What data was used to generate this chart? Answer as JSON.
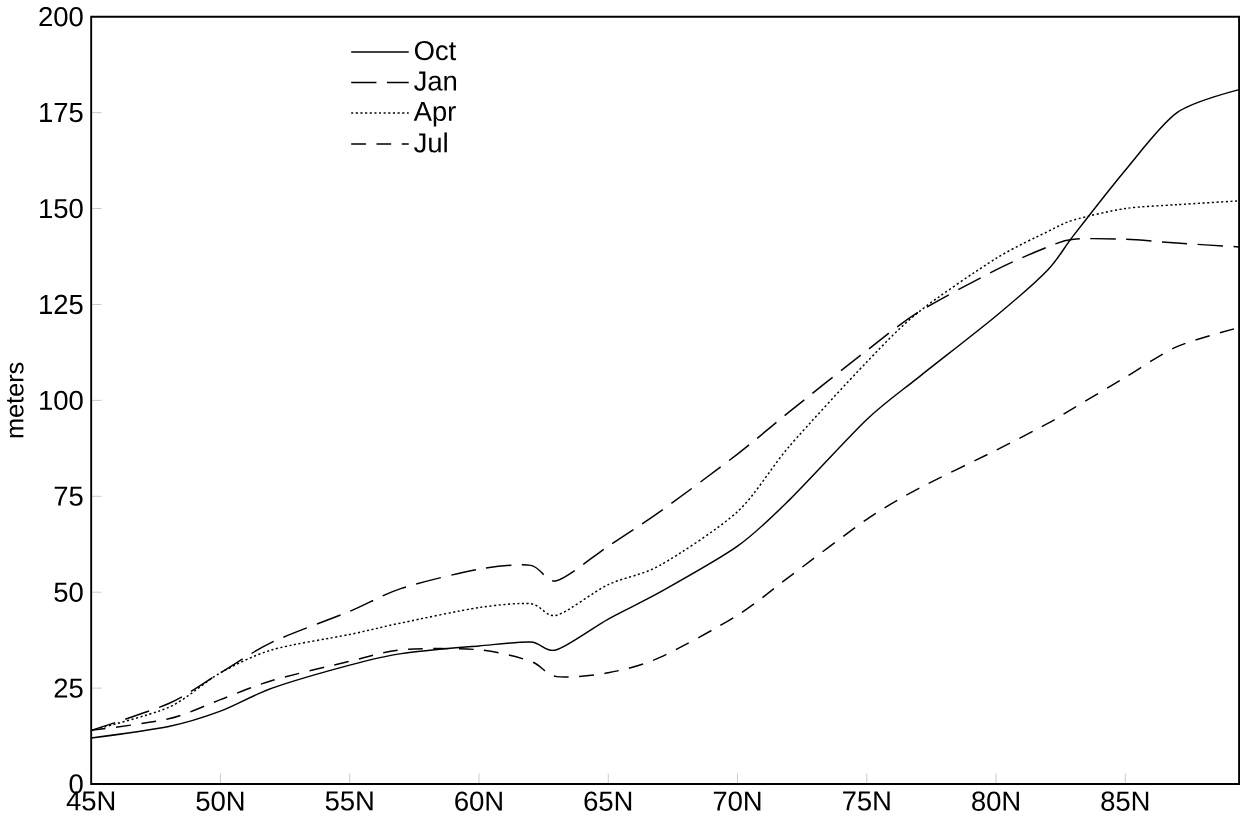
{
  "chart_data": {
    "type": "line",
    "ylabel": "meters",
    "x": [
      45,
      48,
      50,
      52,
      55,
      57,
      60,
      62,
      63,
      65,
      67,
      70,
      72,
      75,
      77,
      80,
      82,
      83,
      85,
      87,
      89.4
    ],
    "series": [
      {
        "name": "Oct",
        "color": "#000000",
        "line_style": "solid",
        "values": [
          12,
          15,
          19,
          25,
          31,
          34,
          36,
          37,
          35,
          43,
          50,
          62,
          74,
          95,
          106,
          122,
          134,
          143,
          160,
          175,
          181
        ]
      },
      {
        "name": "Jan",
        "color": "#000000",
        "line_style": "dashed",
        "values": [
          14,
          21,
          29,
          37,
          45,
          51,
          56,
          57,
          53,
          62,
          71,
          86,
          97,
          113,
          123,
          134,
          140,
          142,
          142,
          141,
          140
        ]
      },
      {
        "name": "Apr",
        "color": "#000000",
        "line_style": "dotted",
        "values": [
          14,
          20,
          29,
          35,
          39,
          42,
          46,
          47,
          44,
          52,
          57,
          71,
          88,
          110,
          123,
          137,
          144,
          147,
          150,
          151,
          152
        ]
      },
      {
        "name": "Jul",
        "color": "#000000",
        "line_style": "dashed",
        "values": [
          14,
          17,
          22,
          27,
          32,
          35,
          35,
          32,
          28,
          29,
          33,
          44,
          54,
          69,
          77,
          87,
          94,
          98,
          106,
          114,
          119
        ]
      }
    ],
    "xlim": [
      45,
      89.4
    ],
    "xticks": [
      {
        "value": 45,
        "label": "45N"
      },
      {
        "value": 50,
        "label": "50N"
      },
      {
        "value": 55,
        "label": "55N"
      },
      {
        "value": 60,
        "label": "60N"
      },
      {
        "value": 65,
        "label": "65N"
      },
      {
        "value": 70,
        "label": "70N"
      },
      {
        "value": 75,
        "label": "75N"
      },
      {
        "value": 80,
        "label": "80N"
      },
      {
        "value": 85,
        "label": "85N"
      }
    ],
    "ylim": [
      0,
      200
    ],
    "yticks": [
      0,
      25,
      50,
      75,
      100,
      125,
      150,
      175,
      200
    ],
    "legend": "top left",
    "marker": "none",
    "grid": false
  }
}
